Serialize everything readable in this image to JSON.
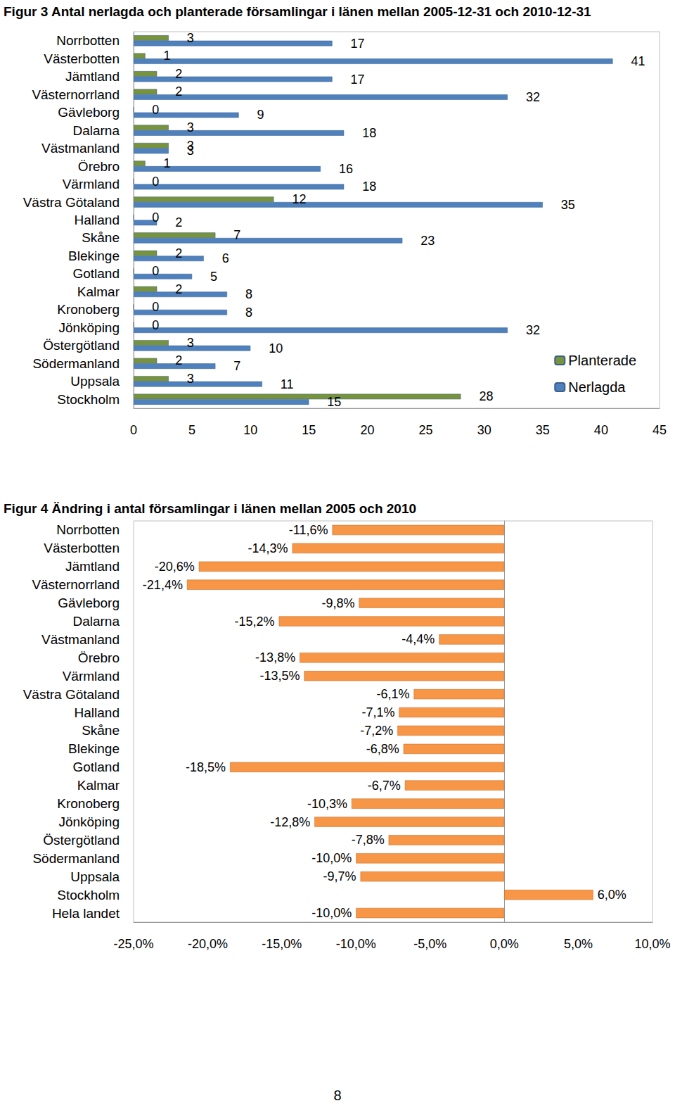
{
  "chart_data": [
    {
      "type": "bar",
      "orientation": "horizontal",
      "title": "Figur 3 Antal nerlagda och planterade församlingar i länen mellan 2005-12-31 och 2010-12-31",
      "categories": [
        "Norrbotten",
        "Västerbotten",
        "Jämtland",
        "Västernorrland",
        "Gävleborg",
        "Dalarna",
        "Västmanland",
        "Örebro",
        "Värmland",
        "Västra Götaland",
        "Halland",
        "Skåne",
        "Blekinge",
        "Gotland",
        "Kalmar",
        "Kronoberg",
        "Jönköping",
        "Östergötland",
        "Södermanland",
        "Uppsala",
        "Stockholm"
      ],
      "series": [
        {
          "name": "Planterade",
          "color": "#77933c",
          "values": [
            3,
            1,
            2,
            2,
            0,
            3,
            3,
            1,
            0,
            12,
            0,
            7,
            2,
            0,
            2,
            0,
            0,
            3,
            2,
            3,
            28
          ]
        },
        {
          "name": "Nerlagda",
          "color": "#4f81bd",
          "values": [
            17,
            41,
            17,
            32,
            9,
            18,
            3,
            16,
            18,
            35,
            2,
            23,
            6,
            5,
            8,
            8,
            32,
            10,
            7,
            11,
            15
          ]
        }
      ],
      "xlim": [
        0,
        45
      ],
      "xticks": [
        0,
        5,
        10,
        15,
        20,
        25,
        30,
        35,
        40,
        45
      ],
      "grid": false,
      "legend": "lower right",
      "data_labels": true
    },
    {
      "type": "bar",
      "orientation": "horizontal",
      "title": "Figur 4 Ändring i antal församlingar i länen mellan 2005 och 2010",
      "categories": [
        "Norrbotten",
        "Västerbotten",
        "Jämtland",
        "Västernorrland",
        "Gävleborg",
        "Dalarna",
        "Västmanland",
        "Örebro",
        "Värmland",
        "Västra Götaland",
        "Halland",
        "Skåne",
        "Blekinge",
        "Gotland",
        "Kalmar",
        "Kronoberg",
        "Jönköping",
        "Östergötland",
        "Södermanland",
        "Uppsala",
        "Stockholm",
        "Hela landet"
      ],
      "values": [
        -11.6,
        -14.3,
        -20.6,
        -21.4,
        -9.8,
        -15.2,
        -4.4,
        -13.8,
        -13.5,
        -6.1,
        -7.1,
        -7.2,
        -6.8,
        -18.5,
        -6.7,
        -10.3,
        -12.8,
        -7.8,
        -10.0,
        -9.7,
        6.0,
        -10.0
      ],
      "value_labels": [
        "-11,6%",
        "-14,3%",
        "-20,6%",
        "-21,4%",
        "-9,8%",
        "-15,2%",
        "-4,4%",
        "-13,8%",
        "-13,5%",
        "-6,1%",
        "-7,1%",
        "-7,2%",
        "-6,8%",
        "-18,5%",
        "-6,7%",
        "-10,3%",
        "-12,8%",
        "-7,8%",
        "-10,0%",
        "-9,7%",
        "6,0%",
        "-10,0%"
      ],
      "color": "#f79646",
      "xlim": [
        -25,
        10
      ],
      "xticks": [
        {
          "value": -25,
          "label": "-25,0%"
        },
        {
          "value": -20,
          "label": "-20,0%"
        },
        {
          "value": -15,
          "label": "-15,0%"
        },
        {
          "value": -10,
          "label": "-10,0%"
        },
        {
          "value": -5,
          "label": "-5,0%"
        },
        {
          "value": 0,
          "label": "0,0%"
        },
        {
          "value": 5,
          "label": "5,0%"
        },
        {
          "value": 10,
          "label": "10,0%"
        }
      ],
      "grid": false,
      "data_labels": true
    }
  ],
  "page_number": 8
}
